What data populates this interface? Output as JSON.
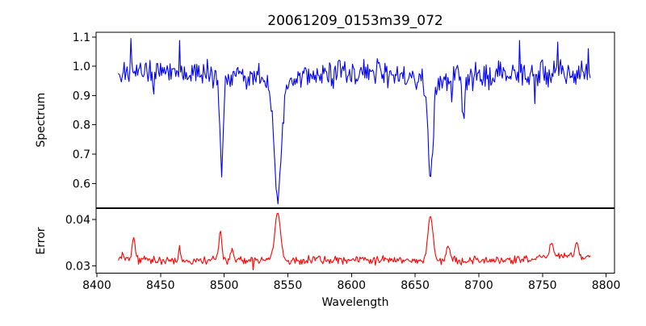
{
  "figure": {
    "title": "20061209_0153m39_072",
    "background": "#ffffff",
    "axis_color": "#000000"
  },
  "chart_data": [
    {
      "type": "line",
      "panel": "spectrum",
      "title": "20061209_0153m39_072",
      "ylabel": "Spectrum",
      "line_color": "#0000ff",
      "xlim": [
        8399.4,
        8806.6
      ],
      "ylim": [
        0.517,
        1.116
      ],
      "x_data_range": [
        8417,
        8788
      ],
      "x_step": 0.75,
      "yticks": {
        "values": [
          0.6,
          0.7,
          0.8,
          0.9,
          1.0,
          1.1
        ],
        "labels": [
          "0.6",
          "0.7",
          "0.8",
          "0.9",
          "1.0",
          "1.1"
        ]
      },
      "grid": false,
      "legend": false,
      "continuum_points": [
        [
          8417,
          0.985
        ],
        [
          8470,
          0.975
        ],
        [
          8530,
          0.968
        ],
        [
          8600,
          0.975
        ],
        [
          8660,
          0.972
        ],
        [
          8700,
          0.968
        ],
        [
          8750,
          0.975
        ],
        [
          8788,
          0.972
        ]
      ],
      "noise_amplitude": 0.055,
      "absorption_lines": [
        {
          "center": 8498,
          "depth": 0.33,
          "sigma": 1.3,
          "lorentz_fraction": 0.3
        },
        {
          "center": 8542,
          "depth": 0.43,
          "sigma": 3.0,
          "lorentz_fraction": 0.55
        },
        {
          "center": 8662,
          "depth": 0.36,
          "sigma": 2.3,
          "lorentz_fraction": 0.45
        },
        {
          "center": 8688,
          "depth": 0.135,
          "sigma": 1.3,
          "lorentz_fraction": 0.3
        }
      ],
      "spikes": [
        {
          "x": 8427,
          "value": 1.095
        },
        {
          "x": 8465,
          "value": 1.088
        },
        {
          "x": 8732,
          "value": 1.088
        },
        {
          "x": 8762,
          "value": 1.083
        },
        {
          "x": 8786,
          "value": 1.06
        },
        {
          "x": 8445,
          "value": 0.905
        },
        {
          "x": 8679,
          "value": 0.878
        },
        {
          "x": 8744,
          "value": 0.872
        }
      ],
      "observed_extremes": {
        "max": 1.09,
        "min": 0.541
      }
    },
    {
      "type": "line",
      "panel": "error",
      "ylabel": "Error",
      "xlabel": "Wavelength",
      "line_color": "#ff0000",
      "xlim": [
        8399.4,
        8806.6
      ],
      "ylim": [
        0.0284,
        0.0424
      ],
      "x_data_range": [
        8417,
        8788
      ],
      "x_step": 0.75,
      "yticks": {
        "values": [
          0.03,
          0.04
        ],
        "labels": [
          "0.03",
          "0.04"
        ]
      },
      "xticks": {
        "values": [
          8400,
          8450,
          8500,
          8550,
          8600,
          8650,
          8700,
          8750,
          8800
        ],
        "labels": [
          "8400",
          "8450",
          "8500",
          "8550",
          "8600",
          "8650",
          "8700",
          "8750",
          "8800"
        ]
      },
      "grid": false,
      "legend": false,
      "baseline": 0.0312,
      "noise_amplitude": 0.0011,
      "peaks": [
        {
          "center": 8420,
          "height": 0.0008,
          "sigma": 5
        },
        {
          "center": 8429,
          "height": 0.0048,
          "sigma": 1.2
        },
        {
          "center": 8465,
          "height": 0.003,
          "sigma": 0.7
        },
        {
          "center": 8497,
          "height": 0.0063,
          "sigma": 1.2
        },
        {
          "center": 8506,
          "height": 0.0028,
          "sigma": 0.9
        },
        {
          "center": 8542,
          "height": 0.0104,
          "sigma": 2.2
        },
        {
          "center": 8662,
          "height": 0.0095,
          "sigma": 2.0
        },
        {
          "center": 8676,
          "height": 0.0032,
          "sigma": 1.5
        },
        {
          "center": 8757,
          "height": 0.0028,
          "sigma": 1.5
        },
        {
          "center": 8768,
          "height": 0.001,
          "sigma": 18
        },
        {
          "center": 8777,
          "height": 0.003,
          "sigma": 1.2
        }
      ],
      "spikes": [
        {
          "x": 8523,
          "value": 0.0291
        }
      ],
      "observed_extremes": {
        "max": 0.0417,
        "min": 0.029
      }
    }
  ]
}
